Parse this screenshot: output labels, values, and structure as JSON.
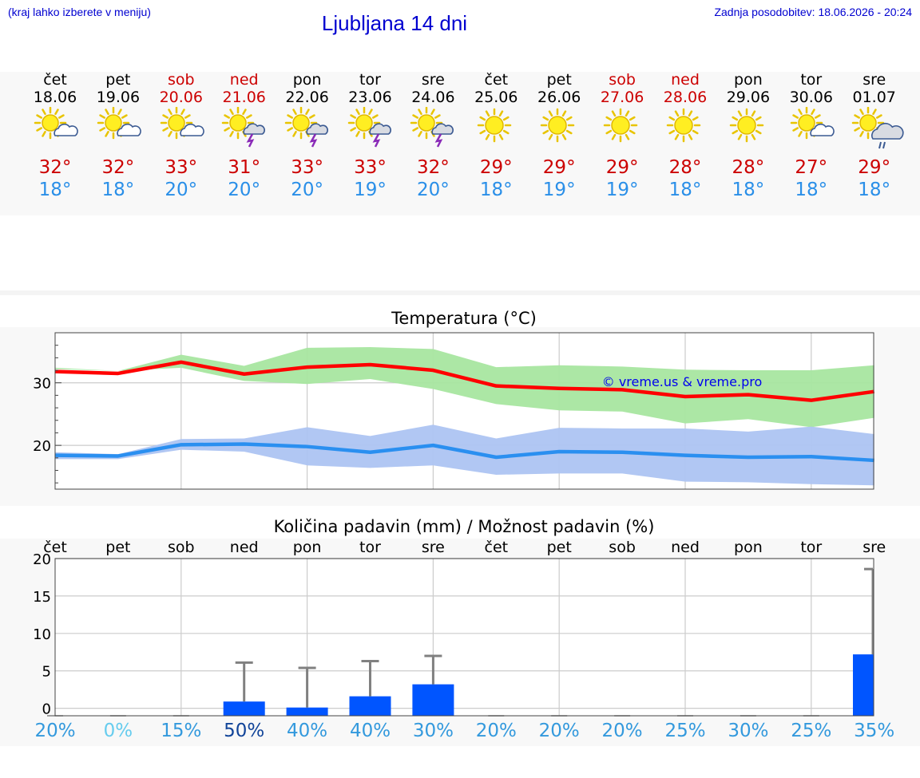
{
  "header": {
    "region_hint": "(kraj lahko izberete v meniju)",
    "title": "Ljubljana 14 dni",
    "last_update": "Zadnja posodobitev: 18.06.2026 - 20:24"
  },
  "colors": {
    "title_blue": "#0000d0",
    "weekend_red": "#cc0000",
    "max_red": "#cc0000",
    "min_blue": "#2a8fe8",
    "max_band": "#a8e6a0",
    "min_band": "#adc4f2",
    "max_line": "#ff0000",
    "min_line": "#2a8ff0",
    "precip_bar": "#0055ff"
  },
  "days": [
    {
      "name": "čet",
      "date": "18.06",
      "weekend": false,
      "icon": "sun-cloud-icon",
      "tmax": "32°",
      "tmin": "18°"
    },
    {
      "name": "pet",
      "date": "19.06",
      "weekend": false,
      "icon": "sun-cloud-icon",
      "tmax": "32°",
      "tmin": "18°"
    },
    {
      "name": "sob",
      "date": "20.06",
      "weekend": true,
      "icon": "sun-cloud-icon",
      "tmax": "33°",
      "tmin": "20°"
    },
    {
      "name": "ned",
      "date": "21.06",
      "weekend": true,
      "icon": "sun-thunderstorm-icon",
      "tmax": "31°",
      "tmin": "20°"
    },
    {
      "name": "pon",
      "date": "22.06",
      "weekend": false,
      "icon": "sun-thunderstorm-icon",
      "tmax": "33°",
      "tmin": "20°"
    },
    {
      "name": "tor",
      "date": "23.06",
      "weekend": false,
      "icon": "sun-thunderstorm-icon",
      "tmax": "33°",
      "tmin": "19°"
    },
    {
      "name": "sre",
      "date": "24.06",
      "weekend": false,
      "icon": "sun-thunderstorm-icon",
      "tmax": "32°",
      "tmin": "20°"
    },
    {
      "name": "čet",
      "date": "25.06",
      "weekend": false,
      "icon": "sun-icon",
      "tmax": "29°",
      "tmin": "18°"
    },
    {
      "name": "pet",
      "date": "26.06",
      "weekend": false,
      "icon": "sun-icon",
      "tmax": "29°",
      "tmin": "19°"
    },
    {
      "name": "sob",
      "date": "27.06",
      "weekend": true,
      "icon": "sun-icon",
      "tmax": "29°",
      "tmin": "19°"
    },
    {
      "name": "ned",
      "date": "28.06",
      "weekend": true,
      "icon": "sun-icon",
      "tmax": "28°",
      "tmin": "18°"
    },
    {
      "name": "pon",
      "date": "29.06",
      "weekend": false,
      "icon": "sun-icon",
      "tmax": "28°",
      "tmin": "18°"
    },
    {
      "name": "tor",
      "date": "30.06",
      "weekend": false,
      "icon": "sun-cloud-icon",
      "tmax": "27°",
      "tmin": "18°"
    },
    {
      "name": "sre",
      "date": "01.07",
      "weekend": false,
      "icon": "sun-rain-cloud-icon",
      "tmax": "29°",
      "tmin": "18°"
    }
  ],
  "chart_data": [
    {
      "type": "line",
      "title": "Temperatura (°C)",
      "watermark": "© vreme.us & vreme.pro",
      "x": [
        "čet",
        "pet",
        "sob",
        "ned",
        "pon",
        "tor",
        "sre",
        "čet",
        "pet",
        "sob",
        "ned",
        "pon",
        "tor",
        "sre"
      ],
      "ylim": [
        13,
        38
      ],
      "yticks": [
        20,
        30
      ],
      "series": [
        {
          "values": [
            31.8,
            31.5,
            33.3,
            31.4,
            32.5,
            32.9,
            32.0,
            29.5,
            29.1,
            28.9,
            27.8,
            28.1,
            27.2,
            28.6
          ],
          "band_low": [
            32.2,
            31.9,
            32.4,
            30.3,
            29.8,
            30.6,
            29.0,
            26.6,
            25.6,
            25.4,
            23.5,
            24.2,
            22.9,
            24.4
          ],
          "band_high": [
            32.4,
            31.9,
            34.5,
            32.7,
            35.6,
            35.7,
            35.4,
            32.5,
            32.8,
            32.6,
            32.1,
            32.0,
            32.0,
            32.8
          ]
        },
        {
          "values": [
            18.4,
            18.3,
            20.1,
            20.2,
            19.8,
            18.9,
            20.0,
            18.1,
            19.0,
            18.9,
            18.4,
            18.1,
            18.2,
            17.6
          ],
          "band_low": [
            17.8,
            17.8,
            19.3,
            19.0,
            16.8,
            16.4,
            16.8,
            15.3,
            15.5,
            15.5,
            14.2,
            14.1,
            13.8,
            13.6
          ],
          "band_high": [
            18.9,
            18.6,
            21.0,
            21.1,
            22.9,
            21.5,
            23.3,
            21.1,
            22.8,
            22.7,
            22.7,
            22.2,
            23.0,
            21.8
          ]
        }
      ]
    },
    {
      "type": "bar",
      "title": "Količina padavin (mm) / Možnost padavin (%)",
      "categories": [
        "čet",
        "pet",
        "sob",
        "ned",
        "pon",
        "tor",
        "sre",
        "čet",
        "pet",
        "sob",
        "ned",
        "pon",
        "tor",
        "sre"
      ],
      "ylim": [
        -1,
        20
      ],
      "yticks": [
        0,
        5,
        10,
        15,
        20
      ],
      "values": [
        0,
        0,
        0,
        0.9,
        0.1,
        1.6,
        3.2,
        0,
        0,
        0,
        0,
        0,
        0,
        7.2
      ],
      "error_max": [
        0,
        0,
        0,
        6.1,
        5.4,
        6.3,
        7.0,
        0,
        0,
        0,
        0,
        0,
        0,
        18.6
      ],
      "probability": [
        "20%",
        "0%",
        "15%",
        "50%",
        "40%",
        "40%",
        "30%",
        "20%",
        "20%",
        "20%",
        "25%",
        "30%",
        "25%",
        "35%"
      ],
      "probability_colors": [
        "#3399dd",
        "#66ccee",
        "#3399dd",
        "#114499",
        "#3399dd",
        "#3399dd",
        "#3399dd",
        "#3399dd",
        "#3399dd",
        "#3399dd",
        "#3399dd",
        "#3399dd",
        "#3399dd",
        "#3399dd"
      ]
    }
  ]
}
